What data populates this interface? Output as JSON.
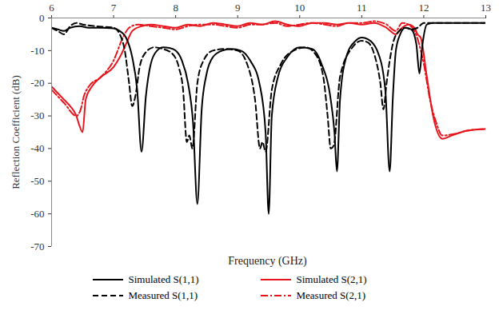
{
  "chart_data": {
    "type": "line",
    "x_label": "Frequency (GHz)",
    "y_label": "Reflection Coefficient (dB)",
    "xlim": [
      6,
      13
    ],
    "xticks": [
      6,
      7,
      8,
      9,
      10,
      11,
      12,
      13
    ],
    "ylim": [
      -70,
      0
    ],
    "yticks": [
      -70,
      -60,
      -50,
      -40,
      -30,
      -20,
      -10,
      0
    ],
    "grid": false,
    "legend": "bottom",
    "series": [
      {
        "name": "Simulated S(1,1)",
        "color": "#000000",
        "line_style": "solid",
        "x": [
          6.0,
          6.1,
          6.2,
          6.3,
          6.45,
          6.6,
          6.8,
          7.0,
          7.1,
          7.2,
          7.3,
          7.38,
          7.45,
          7.52,
          7.6,
          7.7,
          7.8,
          7.9,
          8.0,
          8.1,
          8.2,
          8.28,
          8.35,
          8.42,
          8.5,
          8.6,
          8.75,
          8.9,
          9.05,
          9.2,
          9.35,
          9.45,
          9.5,
          9.55,
          9.65,
          9.8,
          10.0,
          10.2,
          10.35,
          10.5,
          10.56,
          10.6,
          10.65,
          10.75,
          10.9,
          11.0,
          11.1,
          11.25,
          11.38,
          11.45,
          11.5,
          11.55,
          11.62,
          11.7,
          11.8,
          11.88,
          11.93,
          11.98,
          12.05,
          12.15,
          12.5,
          13.0
        ],
        "values": [
          -3,
          -3.5,
          -4,
          -3,
          -2.5,
          -3,
          -3,
          -3.2,
          -4,
          -6,
          -12,
          -22,
          -41,
          -24,
          -14,
          -10,
          -9,
          -9.2,
          -10,
          -13,
          -20,
          -32,
          -57,
          -28,
          -17,
          -12,
          -10,
          -9.5,
          -10,
          -13,
          -20,
          -35,
          -60,
          -30,
          -18,
          -12,
          -9,
          -9.5,
          -14,
          -25,
          -35,
          -47,
          -25,
          -12,
          -7,
          -6,
          -6.5,
          -10,
          -22,
          -47,
          -25,
          -10,
          -5,
          -3,
          -3.5,
          -8,
          -17,
          -8,
          -2,
          -1.5,
          -1.5,
          -1.5
        ]
      },
      {
        "name": "Simulated S(2,1)",
        "color": "#e8141b",
        "line_style": "solid",
        "x": [
          6.0,
          6.1,
          6.2,
          6.3,
          6.4,
          6.45,
          6.5,
          6.55,
          6.65,
          6.8,
          7.0,
          7.1,
          7.2,
          7.3,
          7.45,
          7.6,
          7.8,
          8.0,
          8.2,
          8.4,
          8.6,
          8.8,
          9.0,
          9.2,
          9.4,
          9.6,
          9.8,
          10.0,
          10.2,
          10.4,
          10.6,
          10.8,
          11.0,
          11.2,
          11.4,
          11.55,
          11.65,
          11.75,
          11.85,
          11.9,
          11.95,
          12.05,
          12.15,
          12.3,
          12.45,
          12.7,
          13.0
        ],
        "values": [
          -21,
          -23,
          -25,
          -27,
          -30,
          -33,
          -35,
          -25,
          -21,
          -18,
          -15,
          -12,
          -8,
          -4,
          -2.5,
          -2,
          -2.5,
          -3,
          -2,
          -2.5,
          -1.5,
          -2,
          -2.5,
          -1.5,
          -2,
          -1,
          -2,
          -2.5,
          -1.5,
          -1.5,
          -2,
          -1.5,
          -2,
          -1.5,
          -3,
          -5,
          -3,
          -2,
          -3,
          -5,
          -6,
          -18,
          -30,
          -37,
          -36,
          -34.5,
          -34
        ]
      },
      {
        "name": "Measured S(1,1)",
        "color": "#000000",
        "line_style": "dashed",
        "x": [
          6.0,
          6.1,
          6.2,
          6.3,
          6.4,
          6.5,
          6.7,
          7.0,
          7.1,
          7.18,
          7.25,
          7.3,
          7.35,
          7.42,
          7.5,
          7.65,
          7.8,
          7.95,
          8.05,
          8.12,
          8.18,
          8.22,
          8.27,
          8.35,
          8.45,
          8.6,
          8.8,
          9.0,
          9.15,
          9.28,
          9.36,
          9.4,
          9.45,
          9.55,
          9.7,
          9.9,
          10.1,
          10.25,
          10.38,
          10.45,
          10.5,
          10.55,
          10.65,
          10.85,
          11.0,
          11.1,
          11.2,
          11.3,
          11.35,
          11.4,
          11.5,
          11.6,
          11.7,
          11.8,
          11.9,
          12.0,
          12.5,
          13.0
        ],
        "values": [
          -3,
          -4,
          -5,
          -2.5,
          -1.5,
          -2,
          -2.5,
          -3,
          -5,
          -10,
          -20,
          -27,
          -24,
          -15,
          -11,
          -9,
          -9.5,
          -11,
          -15,
          -22,
          -38,
          -36,
          -40,
          -20,
          -13,
          -10,
          -9.5,
          -10,
          -14,
          -25,
          -40,
          -38,
          -41,
          -22,
          -14,
          -10,
          -9,
          -11,
          -18,
          -30,
          -40,
          -39,
          -18,
          -9,
          -7,
          -7.5,
          -11,
          -20,
          -28,
          -20,
          -8,
          -4,
          -3,
          -3.5,
          -3,
          -1.5,
          -1.5,
          -1.5
        ]
      },
      {
        "name": "Measured S(2,1)",
        "color": "#e8141b",
        "line_style": "dashdot",
        "x": [
          6.0,
          6.2,
          6.4,
          6.47,
          6.52,
          6.6,
          6.8,
          7.0,
          7.15,
          7.25,
          7.4,
          7.6,
          7.8,
          8.0,
          8.2,
          8.4,
          8.6,
          8.8,
          9.0,
          9.2,
          9.4,
          9.6,
          9.8,
          10.0,
          10.2,
          10.4,
          10.6,
          10.8,
          11.0,
          11.2,
          11.4,
          11.55,
          11.65,
          11.75,
          11.85,
          12.0,
          12.1,
          12.2,
          12.3,
          12.5,
          12.7,
          13.0
        ],
        "values": [
          -22,
          -26,
          -30,
          -28,
          -24,
          -21,
          -18,
          -13,
          -6,
          -3,
          -2,
          -2.5,
          -3,
          -3.5,
          -2.5,
          -2,
          -2,
          -2.5,
          -3,
          -2,
          -2,
          -1.5,
          -2.5,
          -2,
          -1.5,
          -2,
          -2.5,
          -1.5,
          -1.5,
          -1,
          -2,
          -4,
          -1.5,
          -2,
          -4,
          -14,
          -25,
          -32,
          -36,
          -35.5,
          -34.5,
          -34
        ]
      }
    ]
  }
}
